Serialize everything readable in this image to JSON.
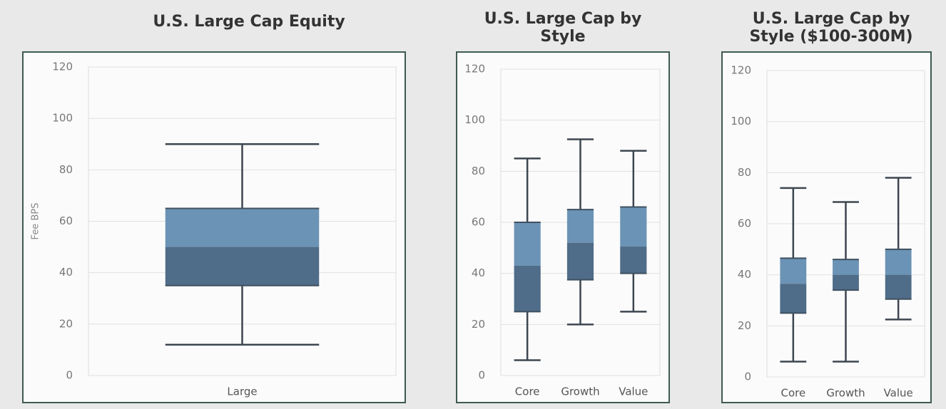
{
  "chart_data": [
    {
      "type": "box",
      "title": [
        "U.S. Large Cap Equity"
      ],
      "y_label": "Fee BPS",
      "categories": [
        "Large"
      ],
      "min": [
        12
      ],
      "q1": [
        35
      ],
      "median": [
        50
      ],
      "q3": [
        65
      ],
      "max": [
        90
      ],
      "upper_color": "#6b93b5",
      "lower_color": "#4f6c88",
      "ylim": [
        0,
        120
      ],
      "yticks": [
        0,
        20,
        40,
        60,
        80,
        100,
        120
      ],
      "grid": true
    },
    {
      "type": "box",
      "title": [
        "U.S. Large Cap by",
        "Style"
      ],
      "categories": [
        "Core",
        "Growth",
        "Value"
      ],
      "min": [
        6,
        20,
        25
      ],
      "q1": [
        25,
        37.5,
        40
      ],
      "median": [
        43,
        52,
        50.5
      ],
      "q3": [
        60,
        65,
        66
      ],
      "max": [
        85,
        92.5,
        88
      ],
      "upper_color": "#6b93b5",
      "lower_color": "#4f6c88",
      "ylim": [
        0,
        120
      ],
      "yticks": [
        0,
        20,
        40,
        60,
        80,
        100,
        120
      ],
      "grid": true
    },
    {
      "type": "box",
      "title": [
        "U.S. Large Cap by",
        "Style ($100-300M)"
      ],
      "categories": [
        "Core",
        "Growth",
        "Value"
      ],
      "min": [
        6,
        6,
        22.5
      ],
      "q1": [
        25,
        34,
        30.5
      ],
      "median": [
        36.5,
        40,
        40
      ],
      "q3": [
        46.5,
        46,
        50
      ],
      "max": [
        74,
        68.5,
        78
      ],
      "upper_color": "#6b93b5",
      "lower_color": "#4f6c88",
      "ylim": [
        0,
        120
      ],
      "yticks": [
        0,
        20,
        40,
        60,
        80,
        100,
        120
      ],
      "grid": true
    }
  ]
}
